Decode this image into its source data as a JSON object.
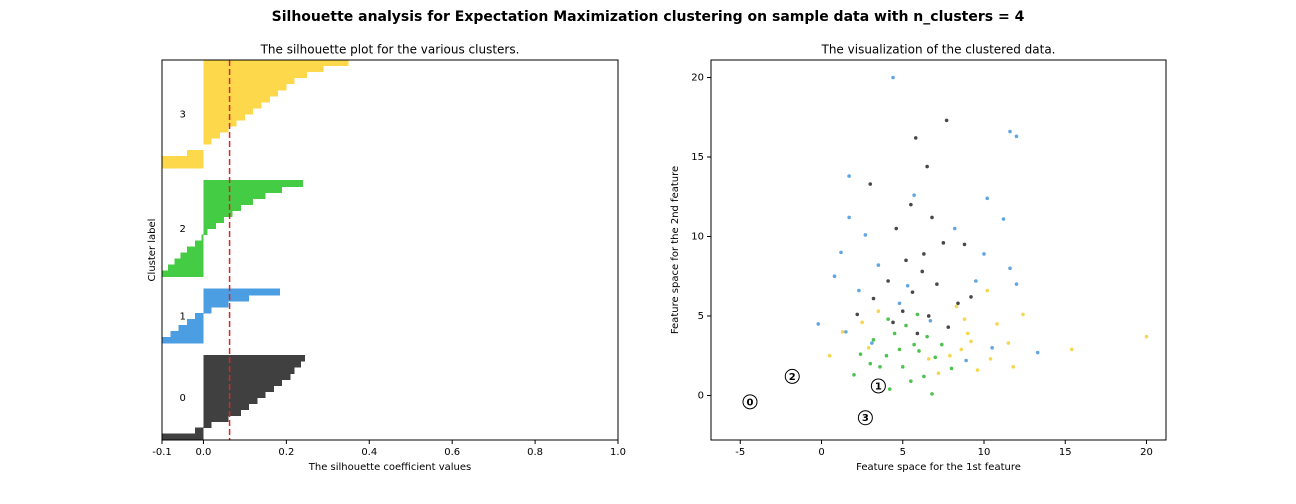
{
  "title": "Silhouette analysis for Expectation Maximization clustering on sample data with n_clusters = 4",
  "chart_data": [
    {
      "type": "silhouette",
      "title": "The silhouette plot for the various clusters.",
      "xlabel": "The silhouette coefficient values",
      "ylabel": "Cluster label",
      "xlim": [
        -0.1,
        1.0
      ],
      "xticks": [
        -0.1,
        {
          "value": 0,
          "label": "0.0"
        },
        0.2,
        0.4,
        0.6,
        0.8,
        {
          "value": 1,
          "label": "1.0"
        }
      ],
      "average": 0.063,
      "average_color": "#d62728",
      "series": [
        {
          "name": "0",
          "color": "#404040",
          "values": [
            -0.1,
            -0.02,
            0.02,
            0.06,
            0.09,
            0.11,
            0.13,
            0.15,
            0.17,
            0.19,
            0.21,
            0.22,
            0.235,
            0.245
          ]
        },
        {
          "name": "1",
          "color": "#4c9ee3",
          "values": [
            -0.1,
            -0.08,
            -0.06,
            -0.04,
            -0.02,
            0.02,
            0.06,
            0.11,
            0.185
          ]
        },
        {
          "name": "2",
          "color": "#44cc44",
          "values": [
            -0.1,
            -0.085,
            -0.07,
            -0.055,
            -0.04,
            -0.02,
            -0.005,
            0.01,
            0.03,
            0.05,
            0.07,
            0.09,
            0.12,
            0.15,
            0.19,
            0.24
          ]
        },
        {
          "name": "3",
          "color": "#fdd84a",
          "values": [
            -0.1,
            -0.1,
            -0.04,
            0.0,
            0.02,
            0.04,
            0.06,
            0.08,
            0.1,
            0.12,
            0.14,
            0.16,
            0.18,
            0.2,
            0.22,
            0.25,
            0.29,
            0.35
          ]
        }
      ]
    },
    {
      "type": "scatter",
      "title": "The visualization of the clustered data.",
      "xlabel": "Feature space for the 1st feature",
      "ylabel": "Feature space for the 2nd feature",
      "xlim": [
        -6.8,
        21.2
      ],
      "ylim": [
        -2.8,
        21.1
      ],
      "xticks": [
        -5,
        0,
        5,
        10,
        15,
        20
      ],
      "yticks": [
        0,
        5,
        10,
        15,
        20
      ],
      "series": [
        {
          "name": "0",
          "color": "#1a1a1a",
          "x": [
            5.8,
            7.7,
            6.5,
            3,
            5.5,
            6.8,
            4.6,
            7.5,
            8.8,
            5.2,
            6.2,
            4.1,
            7.1,
            5.6,
            3.2,
            8.4,
            5,
            6.6,
            4.4,
            7.8,
            5.9,
            6.3,
            2.2,
            9.2
          ],
          "y": [
            16.2,
            17.3,
            14.4,
            13.3,
            12,
            11.2,
            10.5,
            9.6,
            9.5,
            8.5,
            7.8,
            7.2,
            7,
            6.5,
            6.1,
            5.8,
            5.3,
            5,
            4.6,
            4.3,
            3.9,
            8.9,
            5.1,
            6.2
          ]
        },
        {
          "name": "1",
          "color": "#3a8fd9",
          "x": [
            4.4,
            11.6,
            12,
            1.7,
            5.7,
            10.2,
            1.7,
            11.2,
            2.7,
            8.2,
            1.2,
            10,
            3.5,
            11.6,
            0.8,
            9.5,
            2.3,
            5.3,
            12,
            -0.2,
            1.5,
            10.5,
            13.3,
            6.7,
            4.8,
            3.1,
            8.9
          ],
          "y": [
            20,
            16.6,
            16.3,
            13.8,
            12.6,
            12.4,
            11.2,
            11.1,
            10.1,
            10.5,
            9,
            8.9,
            8.2,
            8,
            7.5,
            7.2,
            6.6,
            6.9,
            7,
            4.5,
            4,
            3,
            2.7,
            4.7,
            5.8,
            3.3,
            2.2
          ]
        },
        {
          "name": "2",
          "color": "#22b322",
          "x": [
            3.2,
            4,
            5,
            5.5,
            6.3,
            4.5,
            3.6,
            6,
            7,
            2.4,
            5.2,
            4.2,
            6.8,
            7.4,
            3,
            5.7,
            4.8,
            6.5,
            2,
            8,
            5.9,
            4.1
          ],
          "y": [
            3.5,
            2.5,
            1.8,
            0.9,
            1.2,
            3.9,
            1.8,
            2.8,
            2.4,
            2.6,
            4.4,
            0.4,
            0.1,
            3.2,
            2,
            3.2,
            2.9,
            3.7,
            1.3,
            1.7,
            5.1,
            4.8
          ]
        },
        {
          "name": "3",
          "color": "#f2cc1f",
          "x": [
            20,
            15.4,
            9,
            10.4,
            11.5,
            10.2,
            8.8,
            7.9,
            9.6,
            8.3,
            2.5,
            1.3,
            0.5,
            2.9,
            7.2,
            11.8,
            9.2,
            6.6,
            3.5,
            10.8,
            12.4,
            8.6
          ],
          "y": [
            3.7,
            2.9,
            3.9,
            2.3,
            3.3,
            6.6,
            4.8,
            2.5,
            1.6,
            5.6,
            4.6,
            4,
            2.5,
            3,
            1.4,
            1.8,
            3.4,
            2.3,
            5.3,
            4.5,
            5.1,
            2.9
          ]
        }
      ],
      "centers": {
        "x": [
          -4.4,
          3.5,
          -1.8,
          2.7
        ],
        "y": [
          -0.4,
          0.6,
          1.2,
          -1.4
        ]
      }
    }
  ]
}
